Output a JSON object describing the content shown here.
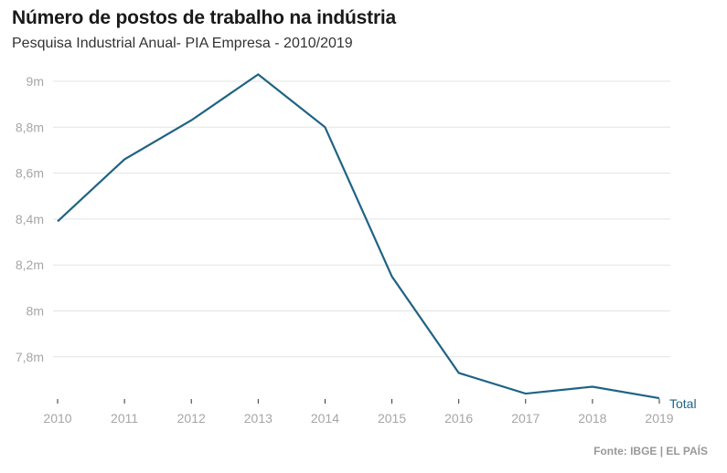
{
  "header": {
    "title": "Número de postos de trabalho na indústria",
    "subtitle": "Pesquisa Industrial Anual- PIA Empresa - 2010/2019"
  },
  "footer": {
    "source": "Fonte: IBGE | EL PAÍS"
  },
  "chart_data": {
    "type": "line",
    "title": "Número de postos de trabalho na indústria",
    "subtitle": "Pesquisa Industrial Anual- PIA Empresa - 2010/2019",
    "xlabel": "",
    "ylabel": "",
    "x": [
      "2010",
      "2011",
      "2012",
      "2013",
      "2014",
      "2015",
      "2016",
      "2017",
      "2018",
      "2019"
    ],
    "series": [
      {
        "name": "Total",
        "color": "#1f6384",
        "values": [
          8.39,
          8.66,
          8.83,
          9.03,
          8.8,
          8.15,
          7.73,
          7.64,
          7.67,
          7.62
        ]
      }
    ],
    "ylim": [
      7.62,
      9.0
    ],
    "yticks": [
      9.0,
      8.8,
      8.6,
      8.4,
      8.2,
      8.0,
      7.8
    ],
    "ytick_labels": [
      "9m",
      "8,8m",
      "8,6m",
      "8,4m",
      "8,2m",
      "8m",
      "7,8m"
    ],
    "grid": true,
    "legend": "end-of-line label",
    "units": "millions"
  }
}
